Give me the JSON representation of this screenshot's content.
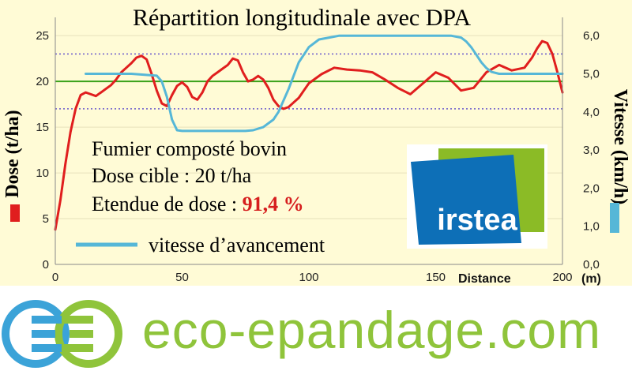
{
  "chart_data": {
    "type": "line",
    "title": "Répartition longitudinale avec DPA",
    "xlabel": "Distance",
    "x_unit": "(m)",
    "ylabel_left": "Dose (t/ha)",
    "ylabel_right": "Vitesse (km/h)",
    "xlim": [
      0,
      200
    ],
    "ylim_left": [
      0,
      27
    ],
    "ylim_right": [
      0,
      6.48
    ],
    "x_ticks": [
      "0",
      "50",
      "100",
      "150",
      "200"
    ],
    "y_left_ticks": [
      "0",
      "5",
      "10",
      "15",
      "20",
      "25"
    ],
    "y_right_ticks": [
      "0,0",
      "1,0",
      "2,0",
      "3,0",
      "4,0",
      "5,0",
      "6,0"
    ],
    "reference_lines": {
      "target_dose": 20,
      "upper_dose": 23,
      "lower_dose": 17
    },
    "series": [
      {
        "axis": "left",
        "color": "#e01e1e",
        "x": [
          0,
          2,
          4,
          6,
          8,
          10,
          12,
          14,
          16,
          18,
          20,
          22,
          24,
          26,
          28,
          30,
          32,
          34,
          36,
          38,
          40,
          42,
          44,
          46,
          48,
          50,
          52,
          54,
          56,
          58,
          60,
          62,
          64,
          66,
          68,
          70,
          72,
          74,
          76,
          78,
          80,
          82,
          84,
          86,
          88,
          90,
          92,
          94,
          96,
          98,
          100,
          105,
          110,
          115,
          120,
          125,
          130,
          135,
          140,
          145,
          150,
          155,
          160,
          165,
          170,
          175,
          180,
          185,
          188,
          190,
          192,
          194,
          196,
          198,
          200
        ],
        "values": [
          3.8,
          7,
          11,
          14.5,
          17,
          18.5,
          18.8,
          18.6,
          18.4,
          18.8,
          19.2,
          19.6,
          20.2,
          21,
          21.5,
          22,
          22.6,
          22.8,
          22.4,
          20.8,
          19,
          17.6,
          17.3,
          18.5,
          19.5,
          19.9,
          19.4,
          18.3,
          18,
          18.8,
          20,
          20.6,
          21,
          21.4,
          21.8,
          22.5,
          22.3,
          21,
          20,
          20.2,
          20.6,
          20.2,
          19.3,
          18,
          17.3,
          17,
          17.2,
          17.7,
          18.2,
          19,
          19.8,
          20.8,
          21.5,
          21.3,
          21.2,
          21,
          20.2,
          19.3,
          18.6,
          19.8,
          21,
          20.4,
          19,
          19.3,
          21,
          21.8,
          21.2,
          21.5,
          22.6,
          23.6,
          24.4,
          24.2,
          23,
          21,
          18.8
        ]
      },
      {
        "axis": "right",
        "color": "#56b7d7",
        "x": [
          12,
          20,
          30,
          40,
          42,
          44,
          46,
          48,
          50,
          55,
          60,
          65,
          70,
          75,
          78,
          82,
          86,
          88,
          92,
          96,
          100,
          104,
          108,
          112,
          115,
          120,
          140,
          150,
          156,
          160,
          162,
          164,
          166,
          168,
          170,
          172,
          175,
          180,
          190,
          200
        ],
        "values": [
          5,
          5,
          5,
          4.95,
          4.8,
          4.4,
          3.8,
          3.52,
          3.5,
          3.5,
          3.5,
          3.5,
          3.5,
          3.5,
          3.52,
          3.6,
          3.8,
          4,
          4.6,
          5.3,
          5.7,
          5.9,
          5.95,
          6,
          6,
          6,
          6,
          6,
          6,
          5.95,
          5.85,
          5.7,
          5.5,
          5.3,
          5.15,
          5.05,
          5,
          5,
          5,
          5
        ]
      }
    ],
    "annotations": {
      "line1": "Fumier composté bovin",
      "line2": "Dose cible : 20 t/ha",
      "line3_prefix": "Etendue de dose : ",
      "line3_value": "91,4 %",
      "speed_legend": "vitesse d’avancement"
    }
  },
  "logos": {
    "irstea": "irstea",
    "site": "eco-epandage.com"
  },
  "colors": {
    "background": "#fffbd6",
    "dose": "#e01e1e",
    "speed": "#56b7d7",
    "target": "#3aa11a",
    "bounds": "#6a5acd",
    "brand_green": "#8fc43b",
    "brand_blue": "#3ba3d8",
    "irstea_blue": "#0d6fb7",
    "irstea_green": "#8bbb26"
  }
}
